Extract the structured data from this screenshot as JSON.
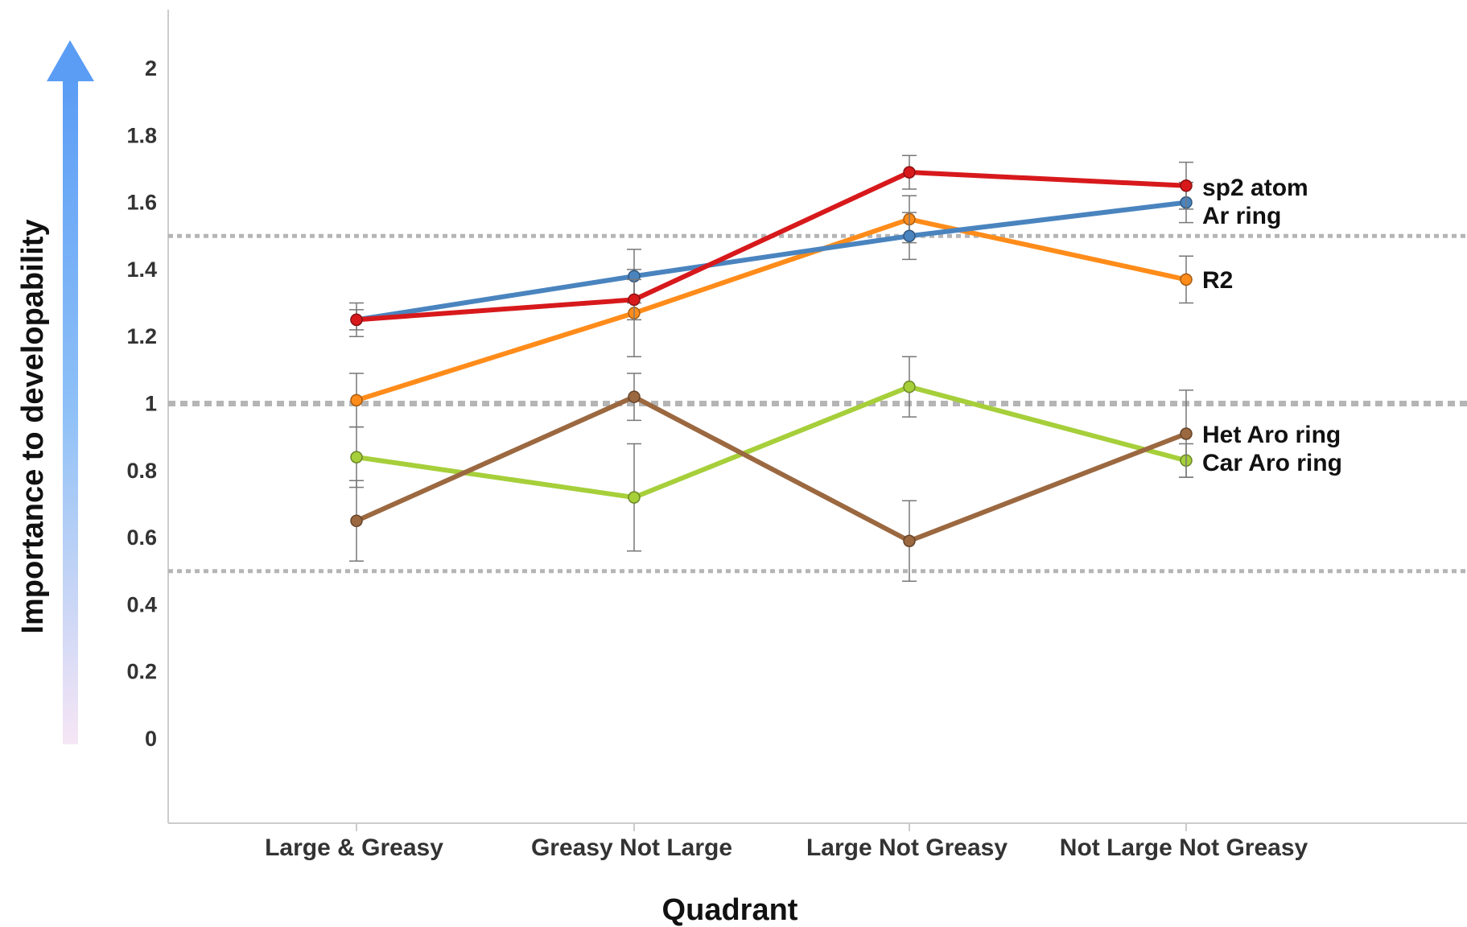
{
  "chart_data": {
    "type": "line",
    "xlabel": "Quadrant",
    "ylabel": "Importance to developability",
    "categories": [
      "Large & Greasy",
      "Greasy Not Large",
      "Large Not Greasy",
      "Not Large Not Greasy"
    ],
    "yticks": [
      "0",
      "0.2",
      "0.4",
      "0.6",
      "0.8",
      "1",
      "1.2",
      "1.4",
      "1.6",
      "1.8",
      "2"
    ],
    "ylim": [
      -0.25,
      2.18
    ],
    "reference_lines": [
      0.5,
      1.0,
      1.5
    ],
    "grid": false,
    "legend": "direct labels at right end of each line",
    "series": [
      {
        "name": "sp2 atom",
        "color": "#d7191c",
        "values": [
          1.25,
          1.31,
          1.69,
          1.65
        ],
        "err": [
          0.05,
          0.06,
          0.05,
          0.07
        ]
      },
      {
        "name": "Ar ring",
        "color": "#4a84bf",
        "values": [
          1.25,
          1.38,
          1.5,
          1.6
        ],
        "err": [
          0.03,
          0.08,
          0.07,
          0.06
        ]
      },
      {
        "name": "R2",
        "color": "#ff8c1a",
        "values": [
          1.01,
          1.27,
          1.55,
          1.37
        ],
        "err": [
          0.08,
          0.13,
          0.07,
          0.07
        ]
      },
      {
        "name": "Het Aro ring",
        "color": "#9b6840",
        "values": [
          0.65,
          1.02,
          0.59,
          0.91
        ],
        "err": [
          0.12,
          0.07,
          0.12,
          0.13
        ]
      },
      {
        "name": "Car Aro ring",
        "color": "#a6cf3a",
        "values": [
          0.84,
          0.72,
          1.05,
          0.83
        ],
        "err": [
          0.09,
          0.16,
          0.09,
          0.05
        ]
      }
    ],
    "label_order": [
      "sp2 atom",
      "Ar ring",
      "R2",
      "Het Aro ring",
      "Car Aro ring"
    ],
    "arrow_colors": {
      "top": "#5b9df5",
      "middle": "#8fc1f7",
      "bottom": "#f6e6f5"
    }
  }
}
